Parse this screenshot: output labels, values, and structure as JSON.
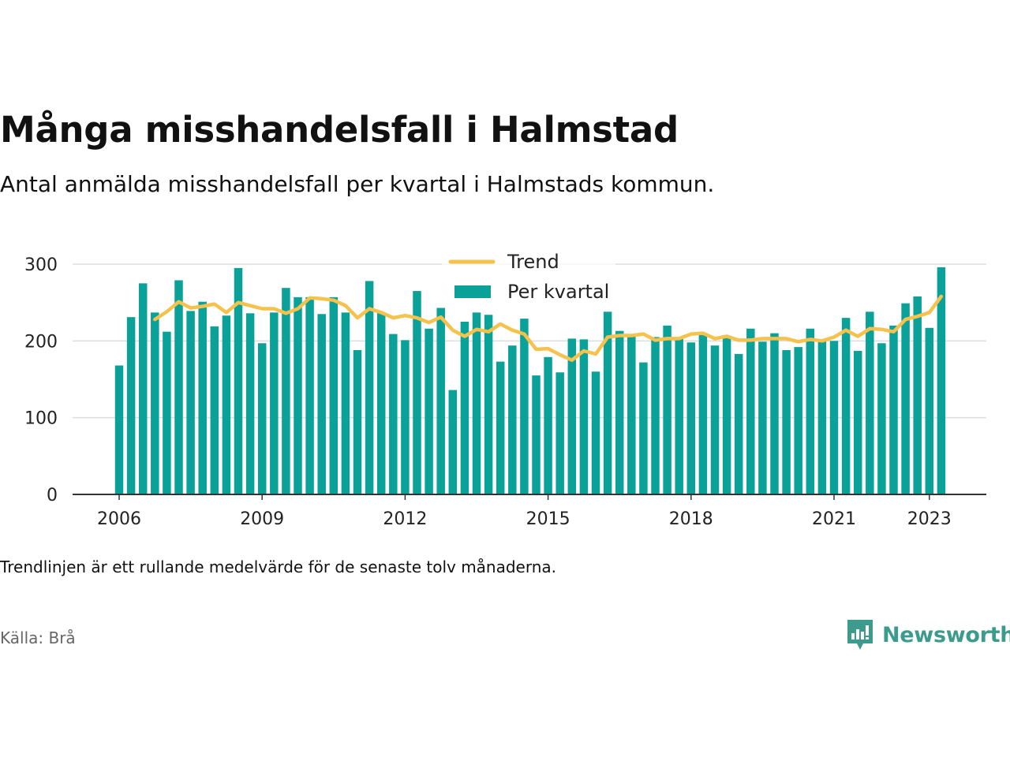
{
  "title": "Många misshandelsfall i Halmstad",
  "subtitle": "Antal anmälda misshandelsfall per kvartal i Halmstads kommun.",
  "note": "Trendlinjen är ett rullande medelvärde för de senaste tolv månaderna.",
  "source": "Källa: Brå",
  "brand": "Newsworthy",
  "colors": {
    "bar": "#0aa298",
    "trend": "#f5c24d",
    "grid": "#dddddd",
    "axis": "#333333"
  },
  "chart_data": {
    "type": "bar",
    "title": "Många misshandelsfall i Halmstad",
    "ylim": [
      0,
      300
    ],
    "yticks": [
      0,
      100,
      200,
      300
    ],
    "xticks": [
      "2006",
      "2009",
      "2012",
      "2015",
      "2018",
      "2021",
      "2023"
    ],
    "grid": true,
    "legend_position": "top-center",
    "x": [
      "2006-Q1",
      "2006-Q2",
      "2006-Q3",
      "2006-Q4",
      "2007-Q1",
      "2007-Q2",
      "2007-Q3",
      "2007-Q4",
      "2008-Q1",
      "2008-Q2",
      "2008-Q3",
      "2008-Q4",
      "2009-Q1",
      "2009-Q2",
      "2009-Q3",
      "2009-Q4",
      "2010-Q1",
      "2010-Q2",
      "2010-Q3",
      "2010-Q4",
      "2011-Q1",
      "2011-Q2",
      "2011-Q3",
      "2011-Q4",
      "2012-Q1",
      "2012-Q2",
      "2012-Q3",
      "2012-Q4",
      "2013-Q1",
      "2013-Q2",
      "2013-Q3",
      "2013-Q4",
      "2014-Q1",
      "2014-Q2",
      "2014-Q3",
      "2014-Q4",
      "2015-Q1",
      "2015-Q2",
      "2015-Q3",
      "2015-Q4",
      "2016-Q1",
      "2016-Q2",
      "2016-Q3",
      "2016-Q4",
      "2017-Q1",
      "2017-Q2",
      "2017-Q3",
      "2017-Q4",
      "2018-Q1",
      "2018-Q2",
      "2018-Q3",
      "2018-Q4",
      "2019-Q1",
      "2019-Q2",
      "2019-Q3",
      "2019-Q4",
      "2020-Q1",
      "2020-Q2",
      "2020-Q3",
      "2020-Q4",
      "2021-Q1",
      "2021-Q2",
      "2021-Q3",
      "2021-Q4",
      "2022-Q1",
      "2022-Q2",
      "2022-Q3",
      "2022-Q4",
      "2023-Q1",
      "2023-Q2"
    ],
    "series": [
      {
        "name": "Per kvartal",
        "type": "bar",
        "values": [
          168,
          231,
          275,
          237,
          212,
          279,
          239,
          251,
          219,
          233,
          295,
          236,
          197,
          237,
          269,
          257,
          257,
          235,
          257,
          237,
          188,
          278,
          237,
          209,
          201,
          265,
          216,
          243,
          136,
          225,
          237,
          234,
          173,
          194,
          229,
          155,
          179,
          159,
          203,
          202,
          160,
          238,
          213,
          206,
          172,
          205,
          220,
          203,
          198,
          209,
          194,
          207,
          183,
          216,
          199,
          210,
          188,
          192,
          216,
          200,
          200,
          230,
          187,
          238,
          197,
          220,
          249,
          258,
          217,
          296
        ]
      },
      {
        "name": "Trend",
        "type": "line",
        "values": [
          null,
          null,
          null,
          228,
          238,
          251,
          243,
          245,
          248,
          237,
          250,
          246,
          242,
          242,
          236,
          242,
          256,
          255,
          253,
          246,
          230,
          242,
          237,
          230,
          233,
          230,
          224,
          231,
          214,
          206,
          215,
          212,
          222,
          214,
          209,
          189,
          190,
          182,
          175,
          187,
          183,
          205,
          207,
          207,
          209,
          201,
          203,
          203,
          209,
          210,
          203,
          206,
          201,
          201,
          203,
          203,
          203,
          199,
          202,
          200,
          205,
          214,
          206,
          216,
          215,
          212,
          228,
          232,
          237,
          258
        ]
      }
    ]
  }
}
